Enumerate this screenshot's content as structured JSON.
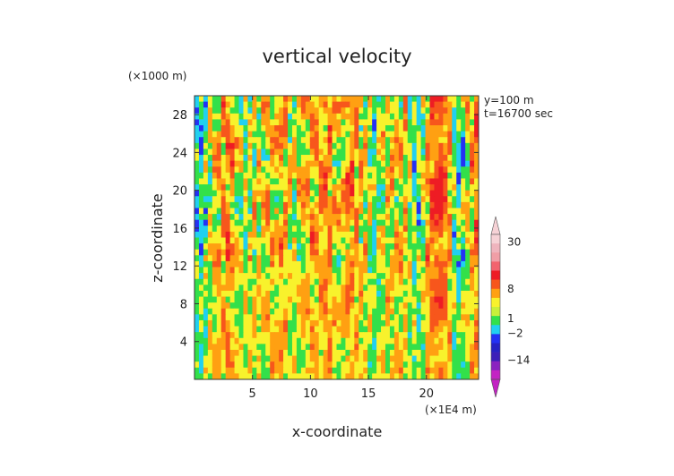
{
  "chart_data": {
    "type": "heatmap",
    "title": "vertical velocity",
    "xlabel": "x-coordinate",
    "ylabel": "z-coordinate",
    "x_unit_label": "(×1E4 m)",
    "y_unit_label": "(×1000 m)",
    "annotations": [
      "y=100 m",
      "t=16700 sec"
    ],
    "xlim": [
      0,
      24.5
    ],
    "ylim": [
      0,
      30
    ],
    "x_ticks": [
      5,
      10,
      15,
      20
    ],
    "y_ticks": [
      4,
      8,
      12,
      16,
      20,
      24,
      28
    ],
    "x_tick_labels": [
      "5",
      "10",
      "15",
      "20"
    ],
    "y_tick_labels": [
      "4",
      "8",
      "12",
      "16",
      "20",
      "24",
      "28"
    ],
    "colorbar": {
      "tick_labels": [
        "30",
        "8",
        "1",
        "−2",
        "−14"
      ],
      "tick_values": [
        30,
        8,
        1,
        -2,
        -14
      ],
      "extend": "both",
      "levels_top_to_bottom": [
        {
          "color": "#f6d2d6"
        },
        {
          "color": "#efb4bd"
        },
        {
          "color": "#f09ea6"
        },
        {
          "color": "#f2636e"
        },
        {
          "color": "#ee1c24"
        },
        {
          "color": "#f7561c"
        },
        {
          "color": "#ffa012"
        },
        {
          "color": "#f8f22c"
        },
        {
          "color": "#c8f03a"
        },
        {
          "color": "#33e04a"
        },
        {
          "color": "#21d0f0"
        },
        {
          "color": "#2431f4"
        },
        {
          "color": "#2622c4"
        },
        {
          "color": "#3c1fb8"
        },
        {
          "color": "#8a22c0"
        },
        {
          "color": "#c323c3"
        }
      ]
    },
    "field_colors": {
      "strong_updraft": "#ee1c24",
      "updraft": "#f7561c",
      "weak_updraft": "#ffa012",
      "neutral": "#f8f22c",
      "weak_downdraft": "#33e04a",
      "downdraft": "#21d0f0",
      "strong_downdraft": "#2431f4"
    }
  }
}
